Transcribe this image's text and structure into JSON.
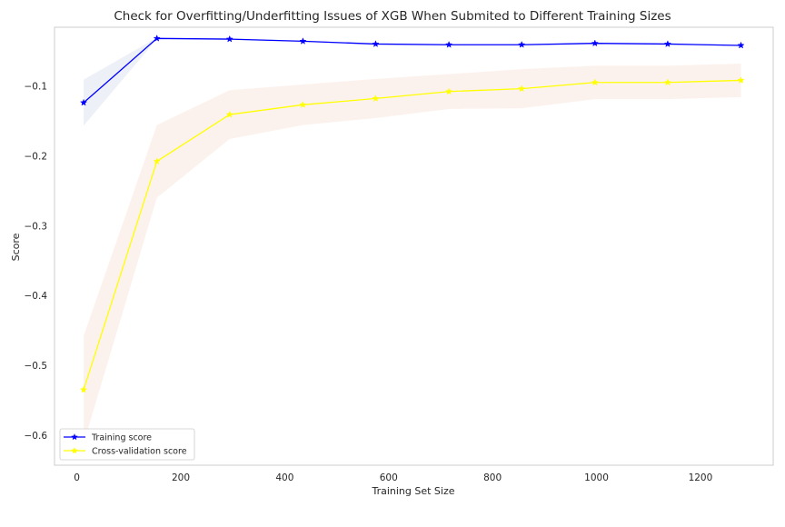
{
  "chart_data": {
    "type": "line",
    "title": "Check for Overfitting/Underfitting Issues of XGB When Submited to Different Training Sizes",
    "xlabel": "Training Set Size",
    "ylabel": "Score",
    "xlim": [
      -43,
      1340
    ],
    "ylim": [
      -0.643,
      -0.016
    ],
    "xticks": [
      0,
      200,
      400,
      600,
      800,
      1000,
      1200
    ],
    "yticks": [
      -0.1,
      -0.2,
      -0.3,
      -0.4,
      -0.5,
      -0.6
    ],
    "ytick_labels": [
      "−0.1",
      "−0.2",
      "−0.3",
      "−0.4",
      "−0.5",
      "−0.6"
    ],
    "grid": false,
    "legend": "lower-left",
    "x": [
      13,
      154,
      294,
      435,
      575,
      716,
      856,
      997,
      1137,
      1278
    ],
    "series": [
      {
        "name": "Training score",
        "color": "#0000ff",
        "band_color": "#4c72b0",
        "marker": "star",
        "values": [
          -0.124,
          -0.032,
          -0.033,
          -0.036,
          -0.04,
          -0.041,
          -0.041,
          -0.039,
          -0.04,
          -0.042
        ],
        "band_lower": [
          -0.157,
          -0.033,
          -0.034,
          -0.037,
          -0.041,
          -0.042,
          -0.042,
          -0.04,
          -0.041,
          -0.043
        ],
        "band_upper": [
          -0.091,
          -0.031,
          -0.032,
          -0.035,
          -0.039,
          -0.04,
          -0.04,
          -0.038,
          -0.039,
          -0.041
        ]
      },
      {
        "name": "Cross-validation score",
        "color": "#ffff00",
        "band_color": "#dd8452",
        "marker": "star",
        "values": [
          -0.535,
          -0.208,
          -0.141,
          -0.127,
          -0.118,
          -0.108,
          -0.104,
          -0.095,
          -0.095,
          -0.092
        ],
        "band_lower": [
          -0.612,
          -0.26,
          -0.176,
          -0.156,
          -0.146,
          -0.133,
          -0.132,
          -0.119,
          -0.119,
          -0.116
        ],
        "band_upper": [
          -0.458,
          -0.156,
          -0.106,
          -0.098,
          -0.09,
          -0.083,
          -0.076,
          -0.071,
          -0.071,
          -0.068
        ]
      }
    ]
  }
}
